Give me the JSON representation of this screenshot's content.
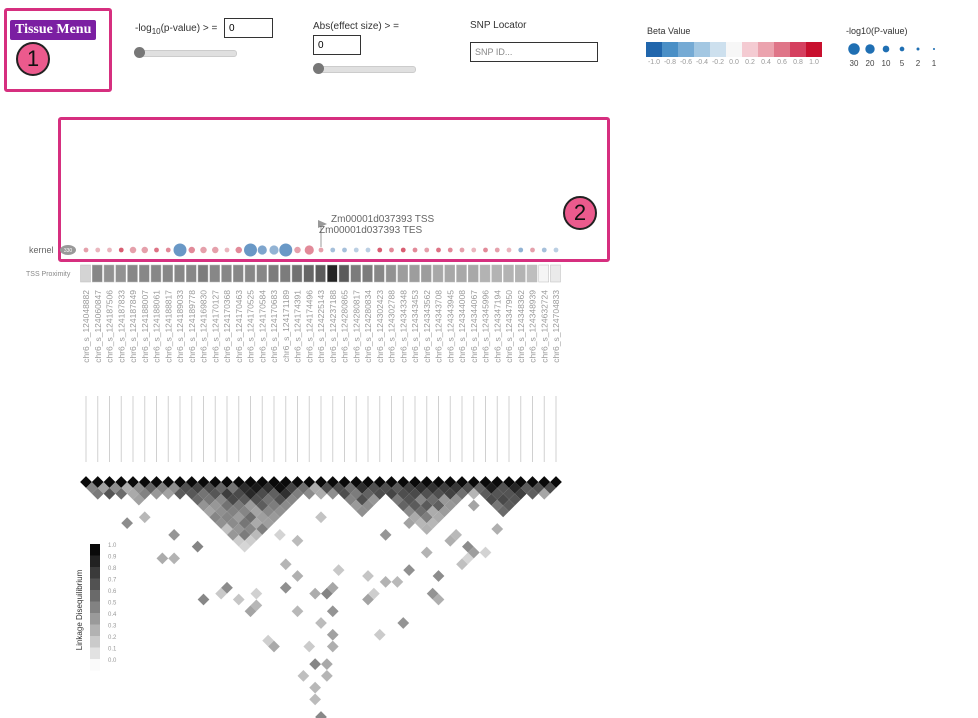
{
  "header": {
    "tissue_menu_label": "Tissue Menu",
    "pvalue_filter": {
      "label_prefix": "-log",
      "label_sub": "10",
      "label_suffix": "(p-value) > =",
      "value": "0",
      "slider_value": 0
    },
    "effect_filter": {
      "label": "Abs(effect size) > =",
      "value": "0",
      "slider_value": 0
    },
    "snp_locator": {
      "label": "SNP Locator",
      "placeholder": "SNP ID..."
    },
    "beta_legend": {
      "title": "Beta Value",
      "colors": [
        "#2166ac",
        "#4a8fc6",
        "#75aad4",
        "#a3c7e2",
        "#cde0ee",
        "#f7f7f7",
        "#f4cbd2",
        "#eba3ae",
        "#df7588",
        "#d5405f",
        "#c8102e"
      ],
      "ticks": [
        "-1.0",
        "-0.8",
        "-0.6",
        "-0.4",
        "-0.2",
        "0.0",
        "0.2",
        "0.4",
        "0.6",
        "0.8",
        "1.0"
      ]
    },
    "pvalue_legend": {
      "title": "-log10(P-value)",
      "ticks": [
        "30",
        "20",
        "10",
        "5",
        "2",
        "1"
      ],
      "color": "#1f6fb3"
    }
  },
  "callouts": {
    "one": "1",
    "two": "2"
  },
  "gene_track": {
    "tss_label": "Zm00001d037393 TSS",
    "tes_label": "Zm00001d037393 TES",
    "row_label": "kernel",
    "count_badge": "330",
    "proximity_label": "TSS Proximity"
  },
  "snps": [
    "chr6_s_124048882",
    "chr6_s_124060847",
    "chr6_s_124187506",
    "chr6_s_124187833",
    "chr6_s_124187849",
    "chr6_s_124188007",
    "chr6_s_124188061",
    "chr6_s_124188817",
    "chr6_s_124189033",
    "chr6_s_124189778",
    "chr6_s_124169830",
    "chr6_s_124170127",
    "chr6_s_124170368",
    "chr6_s_124170463",
    "chr6_s_124170525",
    "chr6_s_124170584",
    "chr6_s_124170683",
    "chr6_s_124171189",
    "chr6_s_124174391",
    "chr6_s_124174496",
    "chr6_s_124225143",
    "chr6_s_124237188",
    "chr6_s_124280865",
    "chr6_s_124280817",
    "chr6_s_124280834",
    "chr6_s_124302423",
    "chr6_s_124302788",
    "chr6_s_124343348",
    "chr6_s_124343453",
    "chr6_s_124343562",
    "chr6_s_124343708",
    "chr6_s_124343945",
    "chr6_s_124344008",
    "chr6_s_124344067",
    "chr6_s_124345996",
    "chr6_s_124347194",
    "chr6_s_124347950",
    "chr6_s_124348362",
    "chr6_s_124348939",
    "chr6_s_124632724",
    "chr6_s_124704833"
  ],
  "snp_points": {
    "beta": [
      0.4,
      0.3,
      0.3,
      0.7,
      0.4,
      0.4,
      0.6,
      0.5,
      -0.7,
      0.5,
      0.4,
      0.4,
      0.3,
      0.5,
      -0.7,
      -0.6,
      -0.5,
      -0.7,
      0.4,
      0.5,
      0.4,
      -0.4,
      -0.4,
      -0.3,
      -0.3,
      0.7,
      0.5,
      0.7,
      0.5,
      0.4,
      0.6,
      0.5,
      0.4,
      0.3,
      0.5,
      0.4,
      0.3,
      -0.5,
      0.4,
      -0.4,
      -0.3
    ],
    "neglog10p": [
      2,
      2,
      2,
      2,
      5,
      5,
      2,
      2,
      20,
      5,
      5,
      5,
      2,
      5,
      20,
      10,
      10,
      20,
      5,
      10,
      2,
      2,
      2,
      2,
      2,
      2,
      2,
      2,
      2,
      2,
      2,
      2,
      2,
      2,
      2,
      2,
      2,
      2,
      2,
      2,
      2
    ]
  },
  "tss_proximity": [
    0.15,
    0.5,
    0.45,
    0.45,
    0.5,
    0.5,
    0.5,
    0.5,
    0.5,
    0.5,
    0.55,
    0.5,
    0.5,
    0.5,
    0.5,
    0.5,
    0.55,
    0.55,
    0.6,
    0.65,
    0.7,
    0.95,
    0.7,
    0.55,
    0.55,
    0.5,
    0.45,
    0.4,
    0.4,
    0.4,
    0.35,
    0.35,
    0.35,
    0.35,
    0.3,
    0.3,
    0.3,
    0.3,
    0.25,
    0.0,
    0.05
  ],
  "ld_legend": {
    "title": "Linkage Disequilibrium",
    "ticks": [
      "1.0",
      "0.9",
      "0.8",
      "0.7",
      "0.6",
      "0.5",
      "0.4",
      "0.3",
      "0.2",
      "0.1",
      "0.0"
    ]
  }
}
